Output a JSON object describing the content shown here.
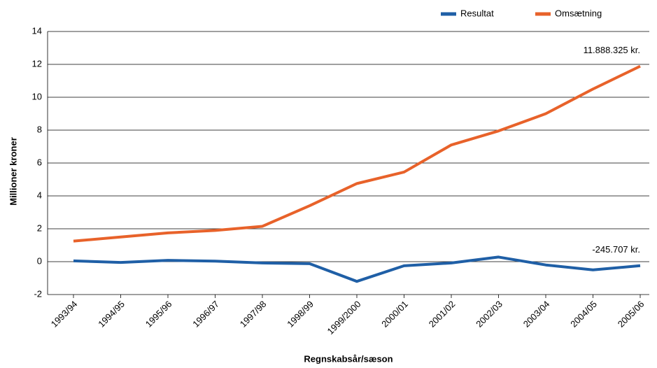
{
  "chart_data": {
    "type": "line",
    "x_label": "Regnskabsår/sæson",
    "y_label": "Millioner kroner",
    "categories": [
      "1993/94",
      "1994/95",
      "1995/96",
      "1996/97",
      "1997/98",
      "1998/99",
      "1999/2000",
      "2000/01",
      "2001/02",
      "2002/03",
      "2003/04",
      "2004/05",
      "2005/06"
    ],
    "series": [
      {
        "name": "Resultat",
        "color": "#1f5fa6",
        "values": [
          0.05,
          -0.05,
          0.08,
          0.03,
          -0.08,
          -0.12,
          -1.2,
          -0.25,
          -0.08,
          0.28,
          -0.2,
          -0.5,
          -0.245707
        ],
        "value_labels": [
          null,
          null,
          null,
          null,
          null,
          null,
          null,
          null,
          null,
          null,
          null,
          null,
          "-245.707 kr."
        ]
      },
      {
        "name": "Omsætning",
        "color": "#e8622a",
        "values": [
          1.25,
          1.5,
          1.75,
          1.9,
          2.15,
          3.4,
          4.75,
          5.45,
          7.1,
          7.95,
          9.0,
          10.5,
          11.888325
        ],
        "value_labels": [
          null,
          null,
          null,
          null,
          null,
          null,
          null,
          null,
          null,
          null,
          null,
          null,
          "11.888.325 kr."
        ]
      }
    ],
    "ylim": [
      -2,
      14
    ],
    "yticks": [
      -2,
      0,
      2,
      4,
      6,
      8,
      10,
      12,
      14
    ],
    "grid": true,
    "legend": "top-right"
  }
}
